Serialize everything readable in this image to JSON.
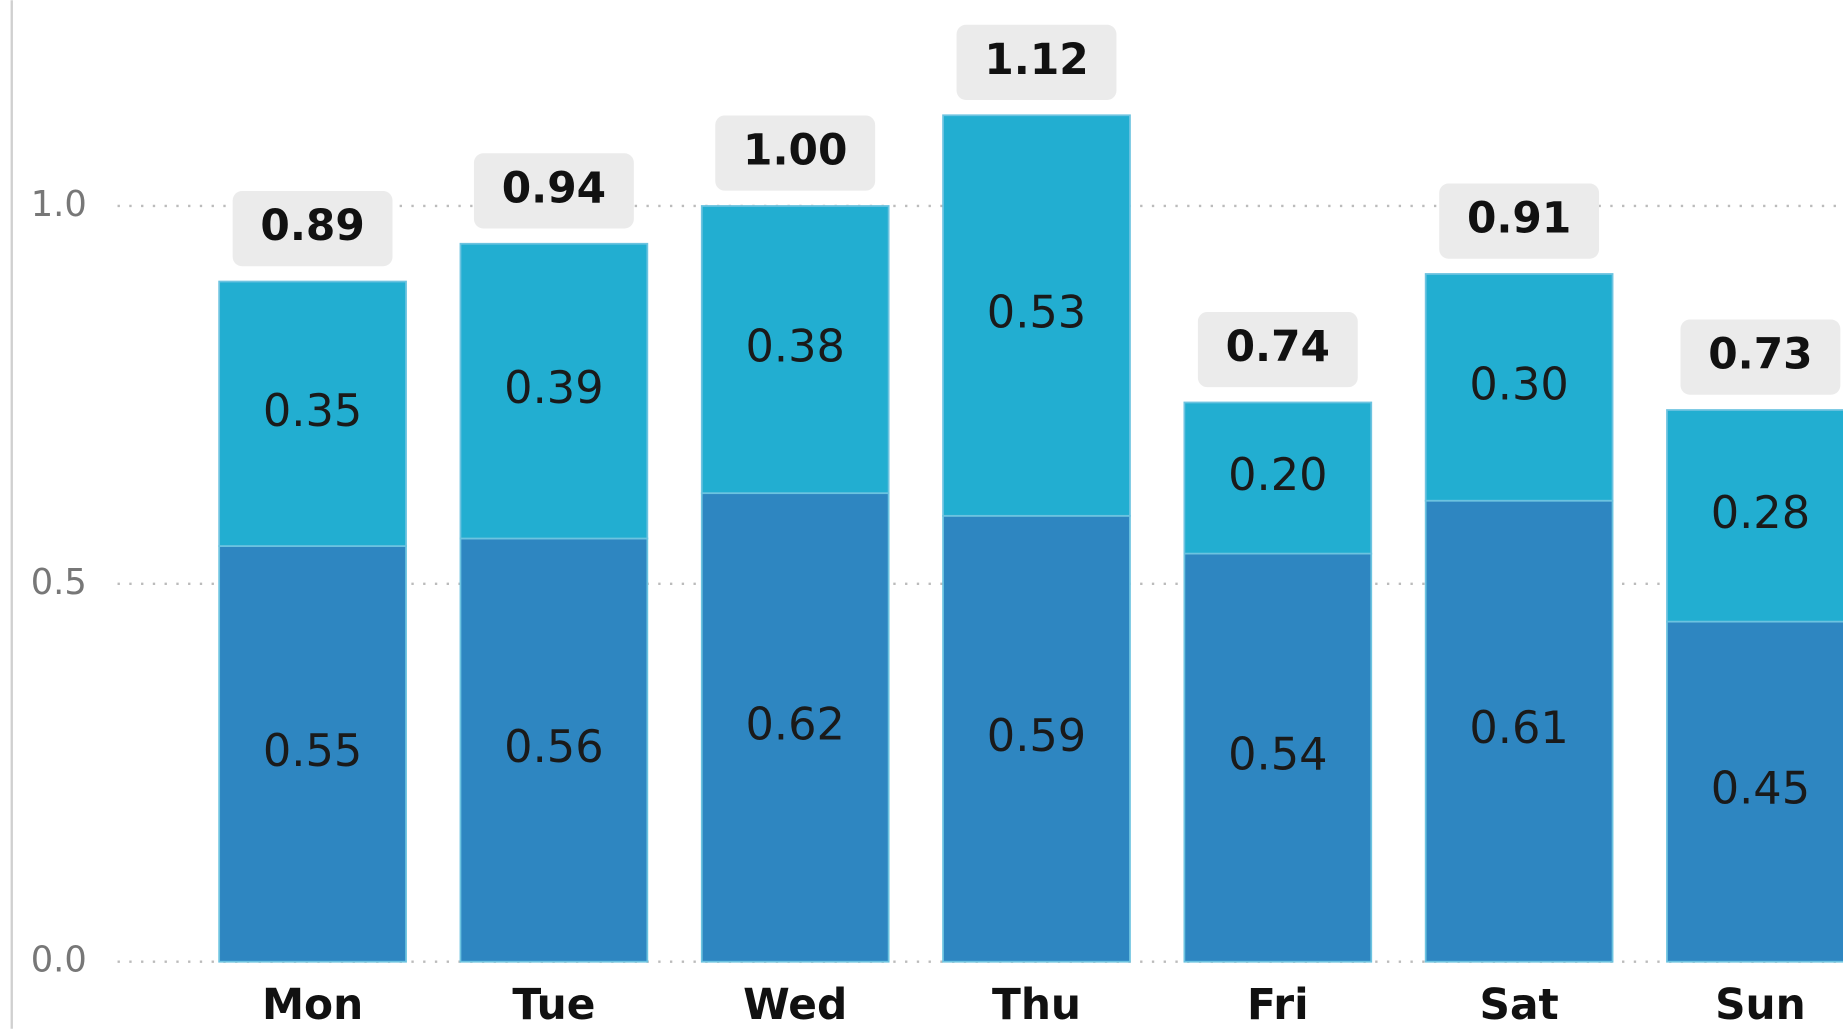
{
  "chart_data": {
    "type": "stacked_bar",
    "categories": [
      "Mon",
      "Tue",
      "Wed",
      "Thu",
      "Fri",
      "Sat",
      "Sun"
    ],
    "series": [
      {
        "color": "#2e86c1",
        "values": [
          0.55,
          0.56,
          0.62,
          0.59,
          0.54,
          0.61,
          0.45
        ],
        "value_labels": [
          "0.55",
          "0.56",
          "0.62",
          "0.59",
          "0.54",
          "0.61",
          "0.45"
        ]
      },
      {
        "color": "#22aed1",
        "values": [
          0.35,
          0.39,
          0.38,
          0.53,
          0.2,
          0.3,
          0.28
        ],
        "value_labels": [
          "0.35",
          "0.39",
          "0.38",
          "0.53",
          "0.20",
          "0.30",
          "0.28"
        ]
      }
    ],
    "totals": [
      0.89,
      0.94,
      1.0,
      1.12,
      0.74,
      0.91,
      0.73
    ],
    "total_labels": [
      "0.89",
      "0.94",
      "1.00",
      "1.12",
      "0.74",
      "0.91",
      "0.73"
    ],
    "ylim": [
      0,
      1.27
    ],
    "yticks": [
      {
        "value": 0,
        "label": "0.0"
      },
      {
        "value": 0.5,
        "label": "0.5"
      },
      {
        "value": 1.0,
        "label": "1.0"
      }
    ],
    "grid": true
  }
}
